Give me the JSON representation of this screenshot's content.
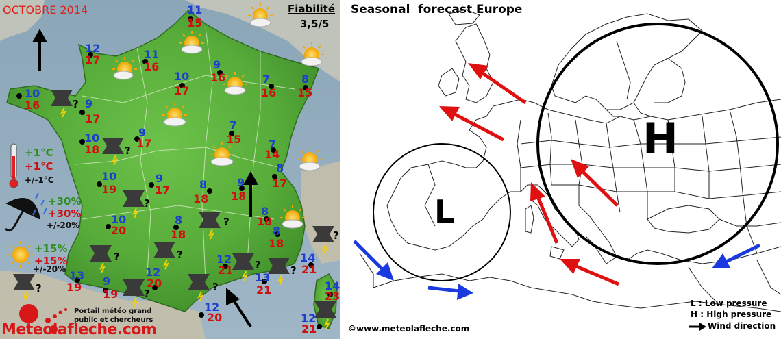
{
  "left_panel": {
    "title": "OCTOBRE 2014",
    "reliability_label": "Fiabilité",
    "reliability_value": "3,5/5",
    "cities": [
      {
        "min": "11",
        "max": "15"
      },
      {
        "min": "12",
        "max": "17"
      },
      {
        "min": "11",
        "max": "16"
      },
      {
        "min": "10",
        "max": "17"
      },
      {
        "min": "9",
        "max": "16"
      },
      {
        "min": "7",
        "max": "16"
      },
      {
        "min": "8",
        "max": "15"
      },
      {
        "min": "10",
        "max": "16"
      },
      {
        "min": "9",
        "max": "17"
      },
      {
        "min": "10",
        "max": "18"
      },
      {
        "min": "9",
        "max": "17"
      },
      {
        "min": "7",
        "max": "15"
      },
      {
        "min": "7",
        "max": "14"
      },
      {
        "min": "8",
        "max": "17"
      },
      {
        "min": "9",
        "max": "17"
      },
      {
        "min": "10",
        "max": "19"
      },
      {
        "min": "8",
        "max": "18"
      },
      {
        "min": "9",
        "max": "18"
      },
      {
        "min": "8",
        "max": "18"
      },
      {
        "min": "10",
        "max": "20"
      },
      {
        "min": "8",
        "max": "18"
      },
      {
        "min": "8",
        "max": "18"
      },
      {
        "min": "12",
        "max": "21"
      },
      {
        "min": "13",
        "max": "21"
      },
      {
        "min": "14",
        "max": "21"
      },
      {
        "min": "13",
        "max": "19"
      },
      {
        "min": "9",
        "max": "19"
      },
      {
        "min": "12",
        "max": "20"
      },
      {
        "min": "12",
        "max": "20"
      },
      {
        "min": "14",
        "max": "23"
      },
      {
        "min": "12",
        "max": "21"
      }
    ],
    "legend": {
      "temp_green": "+1°C",
      "temp_red": "+1°C",
      "temp_range": "+/-1°C",
      "rain_green": "+30%",
      "rain_red": "+30%",
      "rain_range": "+/-20%",
      "sun_green": "+15%",
      "sun_red": "+15%",
      "sun_range": "+/-20%"
    },
    "unknown_mark": "?",
    "portal_line1": "Portail météo grand",
    "portal_line2": "public et chercheurs",
    "logo_text": "Meteolafleche.com"
  },
  "right_panel": {
    "title": "Seasonal  forecast Europe",
    "low_label": "L",
    "high_label": "H",
    "legend_low": "L : Low pressure",
    "legend_high": "H : High pressure",
    "legend_wind": "Wind direction",
    "credit": "©www.meteolafleche.com"
  },
  "colors": {
    "temp_min": "#1d3fcf",
    "temp_max": "#d01010",
    "title_red": "#e0201a",
    "wind_red": "#e01010",
    "wind_blue": "#1a3ae0",
    "land_green": "#5fb040"
  }
}
